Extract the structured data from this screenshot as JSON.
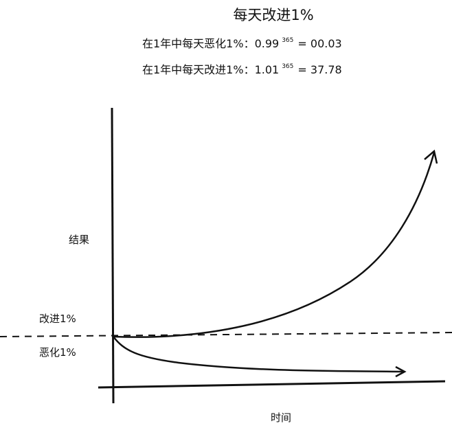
{
  "title": "每天改进1%",
  "formulas": [
    {
      "label": "在1年中每天恶化1%：",
      "base": "0.99",
      "exponent": "365",
      "result": "= 00.03"
    },
    {
      "label": "在1年中每天改进1%：",
      "base": "1.01",
      "exponent": "365",
      "result": "= 37.78"
    }
  ],
  "labels": {
    "y_axis": "结果",
    "x_axis": "时间",
    "improve": "改进1%",
    "decline": "恶化1%"
  }
}
